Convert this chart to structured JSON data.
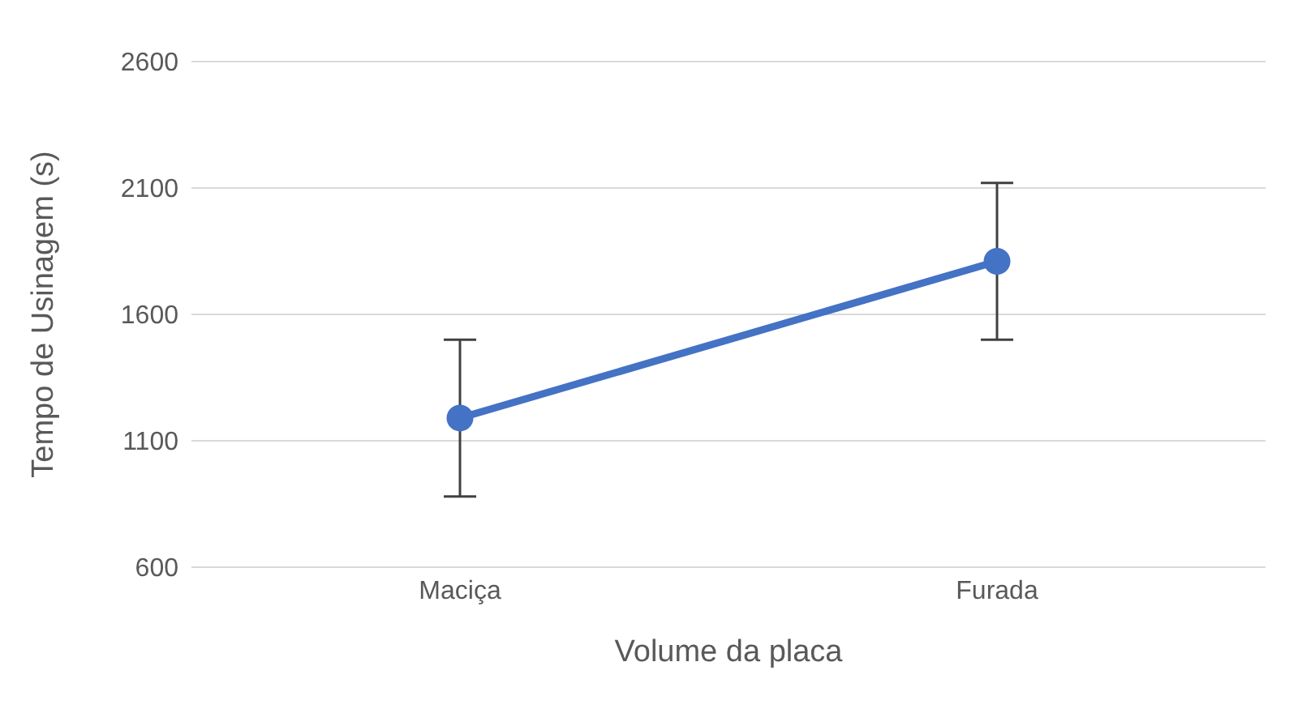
{
  "chart_data": {
    "type": "line",
    "xlabel": "Volume da placa",
    "ylabel": "Tempo de Usinagem (s)",
    "categories": [
      "Maciça",
      "Furada"
    ],
    "series": [
      {
        "color": "#4472c4",
        "values": [
          1190,
          1810
        ],
        "errors": [
          [
            880,
            1500
          ],
          [
            1500,
            2120
          ]
        ]
      }
    ],
    "ylim": [
      600,
      2600
    ],
    "yticks": [
      600,
      1100,
      1600,
      2100,
      2600
    ],
    "grid": "y",
    "marker": "circle",
    "line_style": "solid"
  }
}
